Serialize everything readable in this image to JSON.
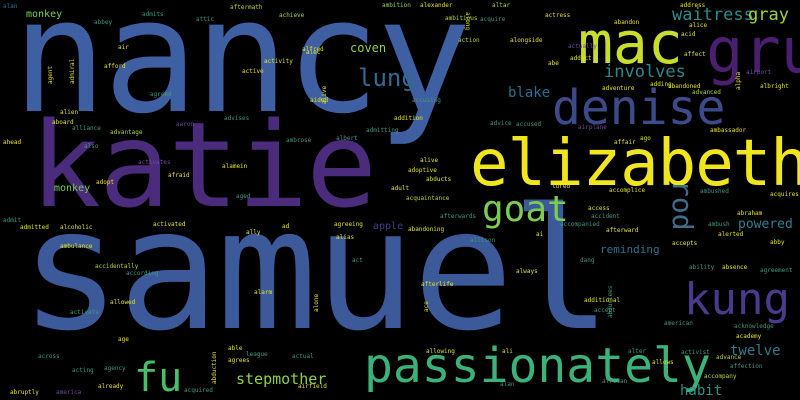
{
  "words": {
    "samuel": "samuel",
    "nancy": "nancy",
    "katie": "katie",
    "elizabeth": "elizabeth",
    "denise": "denise",
    "gru": "gru",
    "mac": "mac",
    "passionately": "passionately",
    "kung": "kung",
    "goat": "goat",
    "fu": "fu",
    "lung": "lung",
    "rod": "rod",
    "involves": "involves",
    "waitress": "waitress",
    "gray": "gray",
    "blake": "blake",
    "stepmother": "stepmother",
    "twelve": "twelve",
    "habit": "habit",
    "powered": "powered",
    "coven": "coven",
    "reminding": "reminding",
    "monkey": "monkey",
    "apple": "apple",
    "alan": "alan",
    "abbey": "abbey",
    "admits": "admits",
    "aftermath": "aftermath",
    "attic": "attic",
    "achieve": "achieve",
    "ambition": "ambition",
    "alexander": "alexander",
    "altar": "altar",
    "actress": "actress",
    "address": "address",
    "alice": "alice",
    "acid": "acid",
    "affect": "affect",
    "ahead": "ahead",
    "accidentally": "accidentally",
    "according": "according",
    "adopt": "adopt",
    "afraid": "afraid",
    "admitting": "admitting",
    "alive": "alive",
    "adoptive": "adoptive",
    "abducts": "abducts",
    "acquaintance": "acquaintance",
    "afterwards": "afterwards",
    "abandoning": "abandoning",
    "allison": "allison",
    "always": "always",
    "afterlife": "afterlife",
    "additional": "additional",
    "accept": "accept",
    "alter": "alter",
    "allows": "allows",
    "activist": "activist",
    "advance": "advance",
    "affection": "affection",
    "accompany": "accompany",
    "alerted": "alerted",
    "agreement": "agreement",
    "acknowledge": "acknowledge",
    "academy": "academy",
    "american": "american",
    "ability": "ability",
    "absence": "absence",
    "accepts": "accepts",
    "abraham": "abraham",
    "ambush": "ambush",
    "ambushed": "ambushed",
    "acquires": "acquires",
    "accomplice": "accomplice",
    "lured": "lured",
    "adult": "adult",
    "accompanied": "accompanied",
    "accident": "accident",
    "access": "access",
    "afterward": "afterward",
    "accused": "accused",
    "advice": "advice",
    "airplane": "airplane",
    "affair": "affair",
    "ago": "ago",
    "ambassador": "ambassador",
    "adventure": "adventure",
    "adding": "adding",
    "abandoned": "abandoned",
    "advanced": "advanced",
    "albright": "albright",
    "airport": "airport",
    "abandon": "abandon",
    "addict": "addict",
    "abe": "abe",
    "actually": "actually",
    "alongside": "alongside",
    "ambitious": "ambitious",
    "acquire": "acquire",
    "action": "action",
    "alien": "alien",
    "aboard": "aboard",
    "alliance": "alliance",
    "also": "also",
    "advantage": "advantage",
    "aaron": "aaron",
    "advises": "advises",
    "addition": "addition",
    "accusing": "accusing",
    "aided": "aided",
    "alfred": "alfred",
    "activity": "activity",
    "active": "active",
    "afford": "afford",
    "agreed": "agreed",
    "air": "air",
    "activates": "activates",
    "alamein": "alamein",
    "aged": "aged",
    "ambrose": "ambrose",
    "albert": "albert",
    "admit": "admit",
    "admitted": "admitted",
    "alcoholic": "alcoholic",
    "ambulance": "ambulance",
    "activated": "activated",
    "ally": "ally",
    "ad": "ad",
    "agreeing": "agreeing",
    "alias": "alias",
    "act": "act",
    "alarm": "alarm",
    "allowed": "allowed",
    "activate": "activate",
    "age": "age",
    "able": "able",
    "league": "league",
    "agrees": "agrees",
    "abduction": "abduction",
    "acquired": "acquired",
    "agency": "agency",
    "already": "already",
    "acting": "acting",
    "across": "across",
    "abruptly": "abruptly",
    "america": "america",
    "actual": "actual",
    "airfield": "airfield",
    "allowing": "allowing",
    "ali": "ali",
    "african": "african",
    "alan2": "alan",
    "alcohol": "alcohol",
    "adam": "adam",
    "abductees": "abductees",
    "abducted": "abducted",
    "alone": "alone",
    "abby": "abby",
    "aid": "aid",
    "alley": "alley",
    "abilities": "abilities",
    "alec": "alec",
    "aliens": "aliens",
    "dang": "dang",
    "ace": "ace",
    "agent": "agent",
    "alpha": "alpha",
    "admiral": "admiral",
    "along": "along",
    "ai": "ai",
    "alive2": "alive",
    "ae": "ae",
    "allie": "allie",
    "achie": "achie"
  }
}
